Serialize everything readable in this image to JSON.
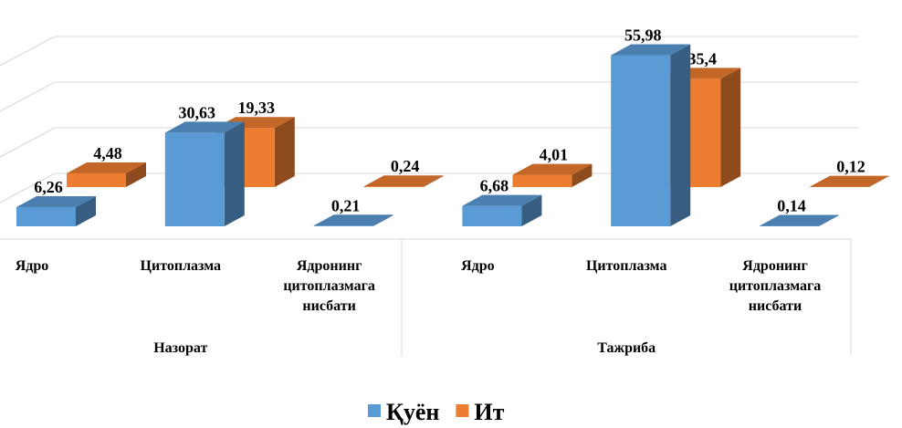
{
  "chart_data": {
    "type": "bar3d",
    "groups": [
      {
        "name": "Назорат",
        "categories": [
          "Ядро",
          "Цитоплазма",
          "Ядронинг цитоплазмага нисбати"
        ]
      },
      {
        "name": "Тажриба",
        "categories": [
          "Ядро",
          "Цитоплазма",
          "Ядронинг цитоплазмага нисбати"
        ]
      }
    ],
    "series": [
      {
        "name": "Қуён",
        "color": "#5b9bd5",
        "values": [
          6.26,
          30.63,
          0.21,
          6.68,
          55.98,
          0.14
        ],
        "value_labels": [
          "6,26",
          "30,63",
          "0,21",
          "6,68",
          "55,98",
          "0,14"
        ]
      },
      {
        "name": "Ит",
        "color": "#ed7d31",
        "values": [
          4.48,
          19.33,
          0.24,
          4.01,
          35.4,
          0.12
        ],
        "value_labels": [
          "4,48",
          "19,33",
          "0,24",
          "4,01",
          "35,4",
          "0,12"
        ]
      }
    ]
  }
}
